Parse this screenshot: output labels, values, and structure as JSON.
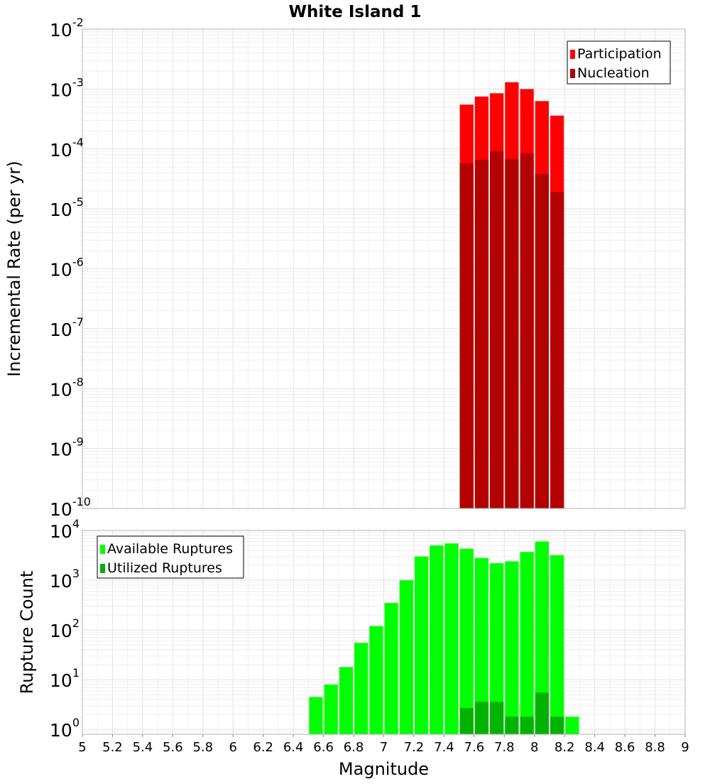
{
  "title": "White Island 1",
  "chart_data": [
    {
      "type": "bar",
      "panel": "top",
      "ylabel": "Incremental Rate (per yr)",
      "yscale": "log",
      "ylim": [
        1e-10,
        0.01
      ],
      "yticks": [
        {
          "base": "10",
          "exp": "-10"
        },
        {
          "base": "10",
          "exp": "-9"
        },
        {
          "base": "10",
          "exp": "-8"
        },
        {
          "base": "10",
          "exp": "-7"
        },
        {
          "base": "10",
          "exp": "-6"
        },
        {
          "base": "10",
          "exp": "-5"
        },
        {
          "base": "10",
          "exp": "-4"
        },
        {
          "base": "10",
          "exp": "-3"
        },
        {
          "base": "10",
          "exp": "-2"
        }
      ],
      "xlim": [
        5,
        9
      ],
      "grid": true,
      "legend_position": "top-right",
      "series": [
        {
          "name": "Participation",
          "color": "#ff0000",
          "x": [
            7.55,
            7.65,
            7.75,
            7.85,
            7.95,
            8.05,
            8.15
          ],
          "values": [
            0.00055,
            0.00075,
            0.00085,
            0.0013,
            0.001,
            0.00063,
            0.00036
          ]
        },
        {
          "name": "Nucleation",
          "color": "#b30000",
          "x": [
            7.55,
            7.65,
            7.75,
            7.85,
            7.95,
            8.05,
            8.15
          ],
          "values": [
            5.8e-05,
            6.6e-05,
            9.2e-05,
            6.8e-05,
            8.5e-05,
            3.8e-05,
            1.9e-05
          ]
        }
      ]
    },
    {
      "type": "bar",
      "panel": "bottom",
      "xlabel": "Magnitude",
      "ylabel": "Rupture Count",
      "yscale": "log",
      "ylim": [
        0.8,
        10000
      ],
      "yticks": [
        {
          "base": "10",
          "exp": "0"
        },
        {
          "base": "10",
          "exp": "1"
        },
        {
          "base": "10",
          "exp": "2"
        },
        {
          "base": "10",
          "exp": "3"
        },
        {
          "base": "10",
          "exp": "4"
        }
      ],
      "xlim": [
        5,
        9
      ],
      "xticks": [
        "5",
        "5.2",
        "5.4",
        "5.6",
        "5.8",
        "6",
        "6.2",
        "6.4",
        "6.6",
        "6.8",
        "7",
        "7.2",
        "7.4",
        "7.6",
        "7.8",
        "8",
        "8.2",
        "8.4",
        "8.6",
        "8.8",
        "9"
      ],
      "grid": true,
      "legend_position": "top-left",
      "series": [
        {
          "name": "Available Ruptures",
          "color": "#00ff00",
          "x": [
            6.55,
            6.65,
            6.75,
            6.85,
            6.95,
            7.05,
            7.15,
            7.25,
            7.35,
            7.45,
            7.55,
            7.65,
            7.75,
            7.85,
            7.95,
            8.05,
            8.15,
            8.25
          ],
          "values": [
            4.5,
            8,
            18,
            55,
            120,
            350,
            1000,
            3000,
            5000,
            5500,
            4300,
            2800,
            2200,
            2400,
            3700,
            6000,
            3200,
            1.8
          ]
        },
        {
          "name": "Utilized Ruptures",
          "color": "#00b300",
          "x": [
            7.55,
            7.65,
            7.75,
            7.85,
            7.95,
            8.05,
            8.15
          ],
          "values": [
            2.7,
            3.6,
            3.6,
            1.8,
            1.8,
            5.5,
            1.8
          ]
        }
      ]
    }
  ]
}
